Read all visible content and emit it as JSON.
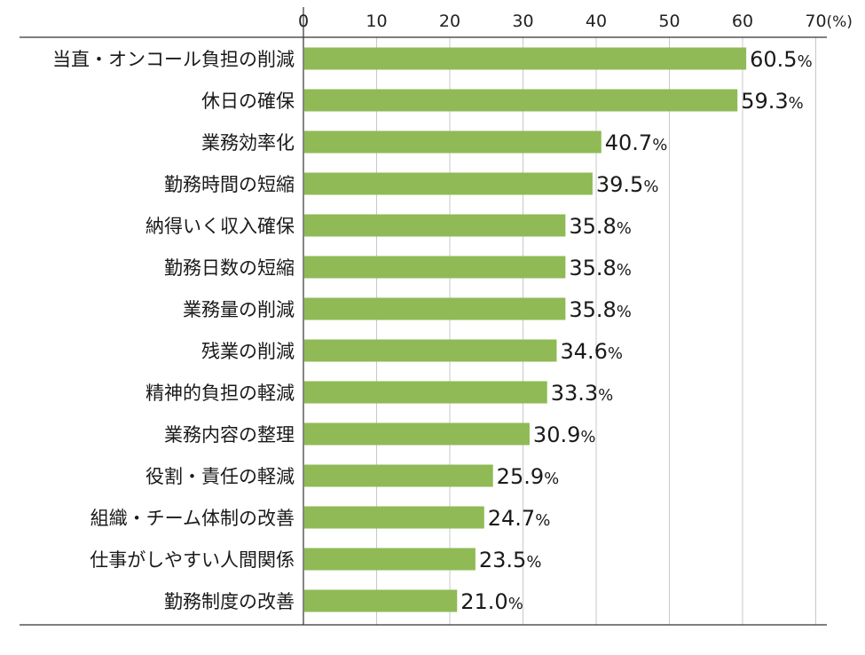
{
  "chart_data": {
    "type": "bar",
    "orientation": "horizontal",
    "title": "",
    "xlabel": "",
    "ylabel": "",
    "unit": "(%)",
    "xlim": [
      0,
      70
    ],
    "xticks": [
      0,
      10,
      20,
      30,
      40,
      50,
      60,
      70
    ],
    "grid": true,
    "bar_color": "#8fba55",
    "grid_color": "#c8c8c8",
    "axis_color": "#333333",
    "value_suffix": "%",
    "categories": [
      "当直・オンコール負担の削減",
      "休日の確保",
      "業務効率化",
      "勤務時間の短縮",
      "納得いく収入確保",
      "勤務日数の短縮",
      "業務量の削減",
      "残業の削減",
      "精神的負担の軽減",
      "業務内容の整理",
      "役割・責任の軽減",
      "組織・チーム体制の改善",
      "仕事がしやすい人間関係",
      "勤務制度の改善"
    ],
    "values": [
      60.5,
      59.3,
      40.7,
      39.5,
      35.8,
      35.8,
      35.8,
      34.6,
      33.3,
      30.9,
      25.9,
      24.7,
      23.5,
      21.0
    ]
  }
}
